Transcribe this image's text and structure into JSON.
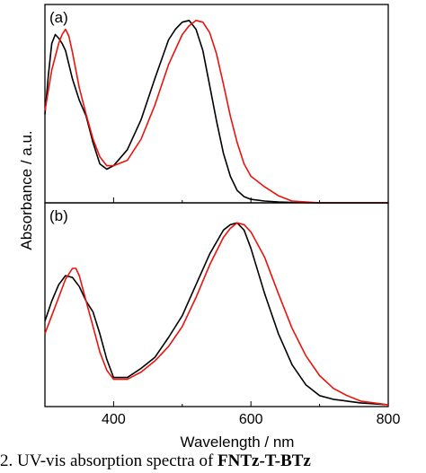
{
  "chart_data": [
    {
      "type": "line",
      "panel_label": "(a)",
      "xlabel": "Wavelength / nm",
      "ylabel": "Absorbance / a.u.",
      "xlim": [
        300,
        800
      ],
      "ylim": [
        0,
        1.12
      ],
      "grid": false,
      "series": [
        {
          "color": "#000000",
          "x": [
            300,
            305,
            310,
            315,
            320,
            325,
            330,
            340,
            350,
            360,
            370,
            380,
            390,
            400,
            420,
            440,
            460,
            480,
            490,
            500,
            510,
            520,
            530,
            540,
            550,
            560,
            570,
            580,
            590,
            600,
            620,
            640,
            660,
            700,
            750,
            800
          ],
          "y": [
            0.5,
            0.72,
            0.9,
            0.95,
            0.93,
            0.9,
            0.86,
            0.7,
            0.58,
            0.49,
            0.34,
            0.22,
            0.19,
            0.21,
            0.3,
            0.47,
            0.7,
            0.92,
            0.98,
            1.02,
            1.03,
            0.98,
            0.86,
            0.66,
            0.46,
            0.28,
            0.15,
            0.07,
            0.035,
            0.02,
            0.01,
            0.005,
            0.002,
            0.0,
            0.0,
            0.0
          ]
        },
        {
          "color": "#e8140e",
          "x": [
            300,
            310,
            320,
            325,
            330,
            335,
            340,
            350,
            360,
            370,
            380,
            390,
            400,
            420,
            440,
            460,
            480,
            500,
            510,
            520,
            530,
            540,
            550,
            560,
            570,
            580,
            590,
            600,
            620,
            640,
            660,
            700,
            750,
            800
          ],
          "y": [
            0.52,
            0.75,
            0.9,
            0.95,
            0.98,
            0.94,
            0.85,
            0.65,
            0.5,
            0.36,
            0.26,
            0.21,
            0.21,
            0.24,
            0.36,
            0.55,
            0.78,
            0.95,
            1.0,
            1.03,
            1.02,
            0.96,
            0.84,
            0.67,
            0.49,
            0.34,
            0.22,
            0.15,
            0.09,
            0.04,
            0.01,
            0.0,
            0.0,
            0.0
          ]
        }
      ]
    },
    {
      "type": "line",
      "panel_label": "(b)",
      "xlabel": "Wavelength / nm",
      "ylabel": "Absorbance / a.u.",
      "xlim": [
        300,
        800
      ],
      "ylim": [
        0,
        1.12
      ],
      "x_ticks": [
        400,
        600,
        800
      ],
      "grid": false,
      "series": [
        {
          "color": "#000000",
          "x": [
            300,
            310,
            320,
            330,
            340,
            350,
            360,
            370,
            380,
            390,
            400,
            420,
            440,
            460,
            480,
            500,
            520,
            540,
            560,
            570,
            580,
            590,
            600,
            620,
            640,
            660,
            680,
            700,
            720,
            740,
            760,
            800
          ],
          "y": [
            0.47,
            0.58,
            0.67,
            0.72,
            0.71,
            0.66,
            0.58,
            0.52,
            0.4,
            0.26,
            0.16,
            0.16,
            0.21,
            0.27,
            0.38,
            0.5,
            0.67,
            0.84,
            0.97,
            1.0,
            1.01,
            0.97,
            0.87,
            0.62,
            0.4,
            0.23,
            0.12,
            0.06,
            0.04,
            0.03,
            0.02,
            0.01
          ]
        },
        {
          "color": "#e8140e",
          "x": [
            300,
            310,
            320,
            330,
            340,
            345,
            350,
            360,
            370,
            380,
            390,
            400,
            420,
            440,
            460,
            480,
            500,
            520,
            540,
            560,
            570,
            580,
            590,
            600,
            620,
            640,
            660,
            680,
            700,
            720,
            740,
            760,
            800
          ],
          "y": [
            0.4,
            0.5,
            0.6,
            0.7,
            0.76,
            0.76,
            0.72,
            0.58,
            0.44,
            0.3,
            0.2,
            0.15,
            0.15,
            0.19,
            0.25,
            0.33,
            0.44,
            0.6,
            0.78,
            0.93,
            0.98,
            1.01,
            1.0,
            0.96,
            0.82,
            0.62,
            0.43,
            0.28,
            0.17,
            0.1,
            0.06,
            0.03,
            0.01
          ]
        }
      ]
    }
  ],
  "caption": {
    "prefix": "2. UV-vis absorption spectra of ",
    "bold": "FNTz-T-BTz"
  }
}
